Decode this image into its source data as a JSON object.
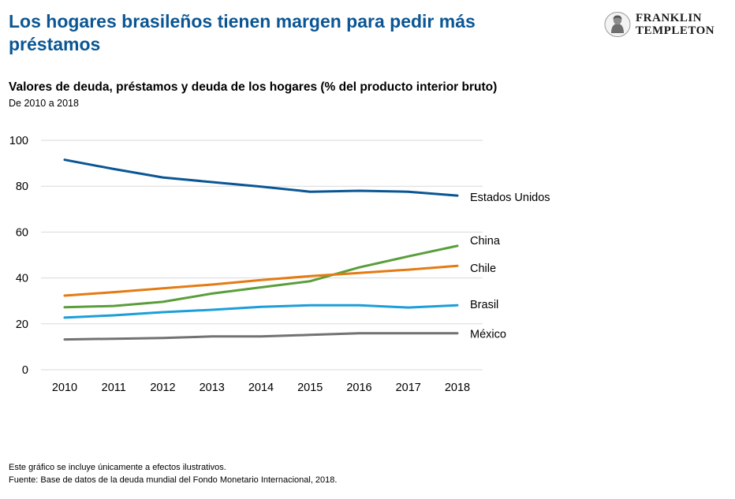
{
  "header": {
    "title": "Los hogares brasileños tienen margen para pedir más préstamos",
    "logo_line1": "FRANKLIN",
    "logo_line2": "TEMPLETON"
  },
  "footer": {
    "note": "Este gráfico se incluye únicamente a efectos ilustrativos.",
    "source": "Fuente: Base de datos de la deuda mundial del Fondo Monetario Internacional, 2018."
  },
  "colors": {
    "title": "#0a5694",
    "grid": "#d9d9d9"
  },
  "chart_data": {
    "type": "line",
    "title": "Valores de deuda, préstamos y deuda de los hogares (% del producto interior bruto)",
    "subtitle": "De 2010 a 2018",
    "xlabel": "",
    "ylabel": "",
    "x": [
      "2010",
      "2011",
      "2012",
      "2013",
      "2014",
      "2015",
      "2016",
      "2017",
      "2018"
    ],
    "ylim": [
      0,
      100
    ],
    "yticks": [
      0,
      20,
      40,
      60,
      80,
      100
    ],
    "grid": true,
    "legend": "right-end-labels",
    "series": [
      {
        "name": "Estados Unidos",
        "color": "#0a5694",
        "values": [
          91.5,
          87.5,
          83.8,
          81.8,
          79.8,
          77.6,
          78.0,
          77.6,
          75.9
        ]
      },
      {
        "name": "China",
        "color": "#5a9e3a",
        "values": [
          27.2,
          27.8,
          29.6,
          33.2,
          35.9,
          38.6,
          44.6,
          49.4,
          54.0
        ]
      },
      {
        "name": "Chile",
        "color": "#e47b12",
        "values": [
          32.3,
          33.8,
          35.5,
          37.1,
          39.1,
          40.8,
          42.2,
          43.6,
          45.3
        ]
      },
      {
        "name": "Brasil",
        "color": "#1c9ed9",
        "values": [
          22.7,
          23.7,
          25.1,
          26.1,
          27.4,
          28.1,
          28.1,
          27.1,
          28.1
        ]
      },
      {
        "name": "México",
        "color": "#727272",
        "values": [
          13.2,
          13.5,
          13.8,
          14.5,
          14.5,
          15.2,
          15.9,
          15.9,
          15.9
        ]
      }
    ]
  }
}
